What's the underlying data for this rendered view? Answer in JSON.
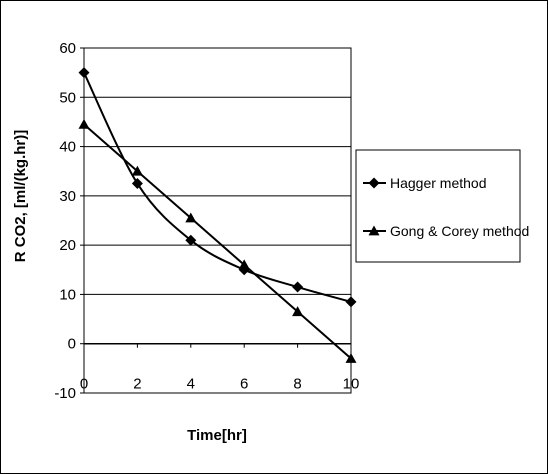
{
  "chart_data": {
    "type": "line",
    "title": "",
    "xlabel": "Time[hr]",
    "ylabel": "R CO2, [ml/(kg.hr)]",
    "x": [
      0,
      2,
      4,
      6,
      8,
      10
    ],
    "xlim": [
      0,
      10
    ],
    "ylim": [
      -10,
      60
    ],
    "xticks": [
      "0",
      "2",
      "4",
      "6",
      "8",
      "10"
    ],
    "yticks": [
      "-10",
      "0",
      "10",
      "20",
      "30",
      "40",
      "50",
      "60"
    ],
    "grid": "horizontal",
    "legend_position": "right",
    "series": [
      {
        "name": "Hagger method",
        "marker": "diamond",
        "color": "#000000",
        "values": [
          55,
          32.5,
          21,
          15,
          11.5,
          8.5
        ]
      },
      {
        "name": "Gong & Corey method",
        "marker": "triangle",
        "color": "#000000",
        "values": [
          44.5,
          35,
          25.5,
          16,
          6.5,
          -3
        ]
      }
    ]
  }
}
